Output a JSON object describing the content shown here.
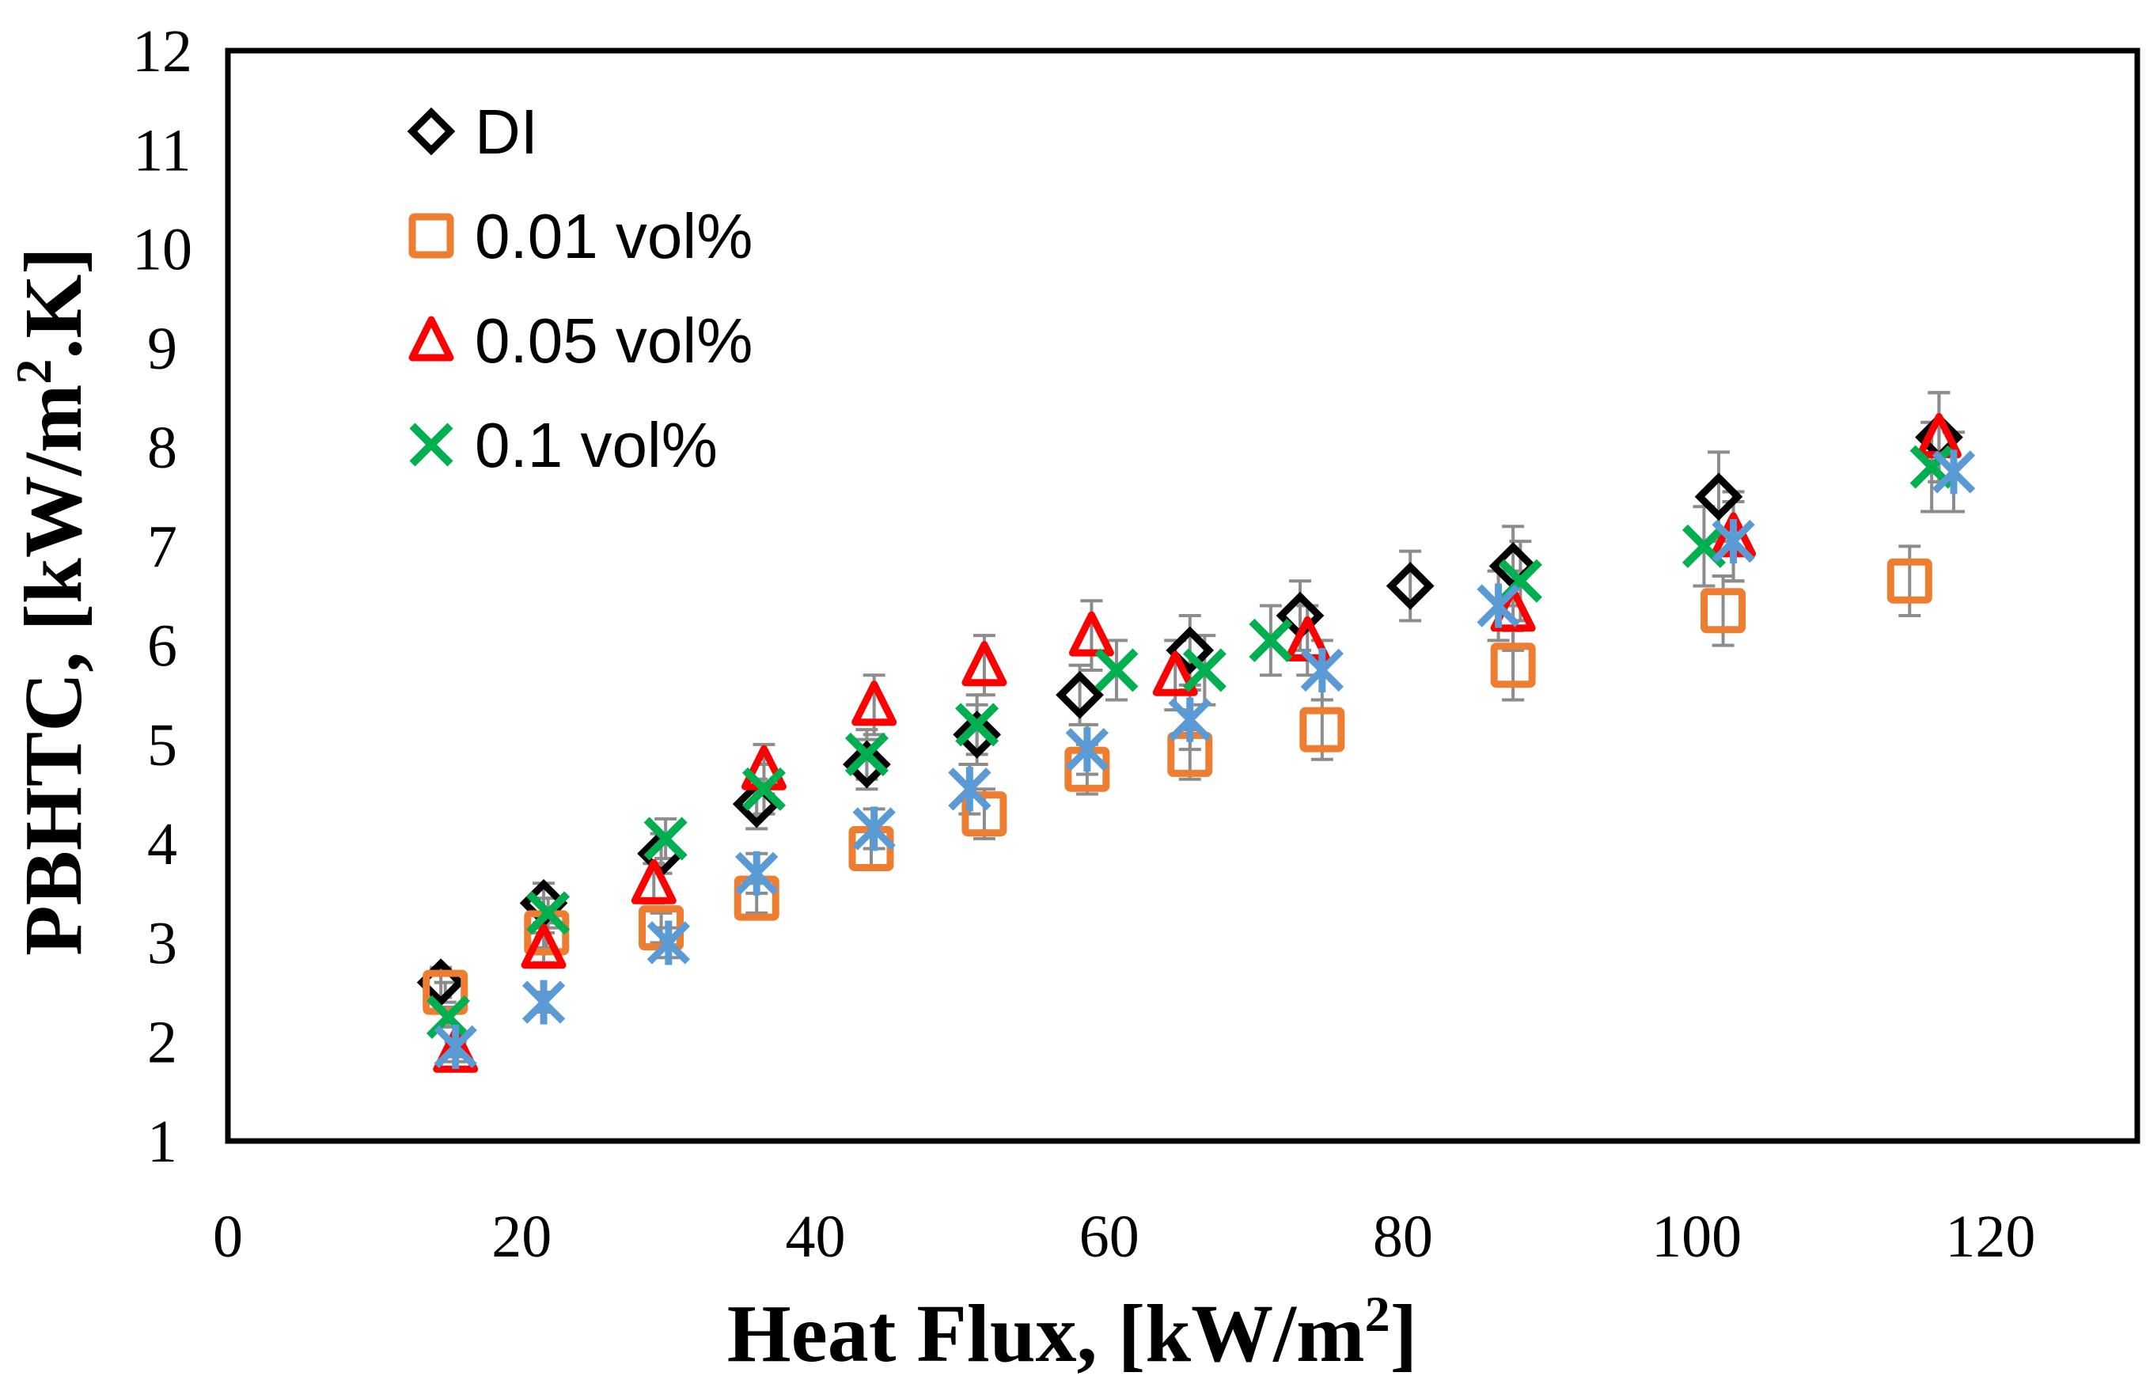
{
  "chart_data": {
    "type": "scatter",
    "title": "",
    "xlabel": "Heat Flux, [kW/m",
    "xlabel_sup": "2",
    "xlabel_end": "]",
    "ylabel": "PBHTC, [kW/m",
    "ylabel_sup": "2",
    "ylabel_end": ".K]",
    "xlim": [
      0,
      130
    ],
    "ylim": [
      1,
      12
    ],
    "xticks": [
      0,
      20,
      40,
      60,
      80,
      100,
      120
    ],
    "yticks": [
      1,
      2,
      3,
      4,
      5,
      6,
      7,
      8,
      9,
      10,
      11,
      12
    ],
    "grid": false,
    "legend_position": "top-left",
    "series": [
      {
        "name": "DI",
        "marker": "diamond",
        "color": "#000000",
        "x": [
          14.5,
          21.5,
          29.5,
          36,
          43.5,
          51,
          58,
          65.5,
          73,
          80.5,
          87.5,
          101.5,
          116.5
        ],
        "y": [
          2.6,
          3.4,
          3.9,
          4.4,
          4.8,
          5.1,
          5.5,
          5.95,
          6.3,
          6.6,
          6.8,
          7.5,
          8.1
        ],
        "err": [
          0.15,
          0.2,
          0.2,
          0.25,
          0.25,
          0.3,
          0.3,
          0.35,
          0.35,
          0.35,
          0.4,
          0.45,
          0.45
        ]
      },
      {
        "name": "0.01 vol%",
        "marker": "square",
        "color": "#ED7D31",
        "x": [
          14.8,
          21.7,
          29.5,
          36,
          43.8,
          51.5,
          58.5,
          65.5,
          74.5,
          87.5,
          101.8,
          114.5
        ],
        "y": [
          2.5,
          3.1,
          3.15,
          3.45,
          3.95,
          4.3,
          4.75,
          4.9,
          5.15,
          5.8,
          6.35,
          6.65
        ],
        "err": [
          0.1,
          0.15,
          0.15,
          0.15,
          0.2,
          0.25,
          0.25,
          0.25,
          0.3,
          0.35,
          0.35,
          0.35
        ]
      },
      {
        "name": "0.05 vol%",
        "marker": "triangle",
        "color": "#FF0000",
        "x": [
          15.5,
          21.5,
          29,
          36.5,
          44,
          51.5,
          58.8,
          64.5,
          73.5,
          87.5,
          102.5,
          116.5
        ],
        "y": [
          1.9,
          2.95,
          3.6,
          4.75,
          5.4,
          5.8,
          6.1,
          5.7,
          6.05,
          6.35,
          7.1,
          8.1
        ],
        "err": [
          0.1,
          0.15,
          0.2,
          0.25,
          0.3,
          0.3,
          0.35,
          0.35,
          0.35,
          0.4,
          0.45,
          0.45
        ]
      },
      {
        "name": "0.1 vol%",
        "marker": "x",
        "color": "#00B050",
        "x": [
          15,
          21.8,
          29.8,
          36.5,
          43.5,
          51,
          60.5,
          66.5,
          71,
          88,
          100.5,
          116
        ],
        "y": [
          2.25,
          3.3,
          4.05,
          4.55,
          4.9,
          5.2,
          5.75,
          5.75,
          6.05,
          6.65,
          7.0,
          7.8
        ],
        "err": [
          0.1,
          0.15,
          0.2,
          0.25,
          0.25,
          0.3,
          0.3,
          0.35,
          0.35,
          0.4,
          0.4,
          0.45
        ]
      },
      {
        "name": "",
        "marker": "asterisk",
        "color": "#5B9BD5",
        "x": [
          15.5,
          21.5,
          30,
          36,
          44,
          50.5,
          58.5,
          65.5,
          74.5,
          86.5,
          102.5,
          117.5
        ],
        "y": [
          1.95,
          2.4,
          3.0,
          3.7,
          4.15,
          4.55,
          4.95,
          5.25,
          5.75,
          6.4,
          7.05,
          7.75
        ],
        "err": [
          0.1,
          0.1,
          0.15,
          0.2,
          0.2,
          0.25,
          0.25,
          0.3,
          0.3,
          0.35,
          0.4,
          0.4
        ]
      }
    ]
  }
}
